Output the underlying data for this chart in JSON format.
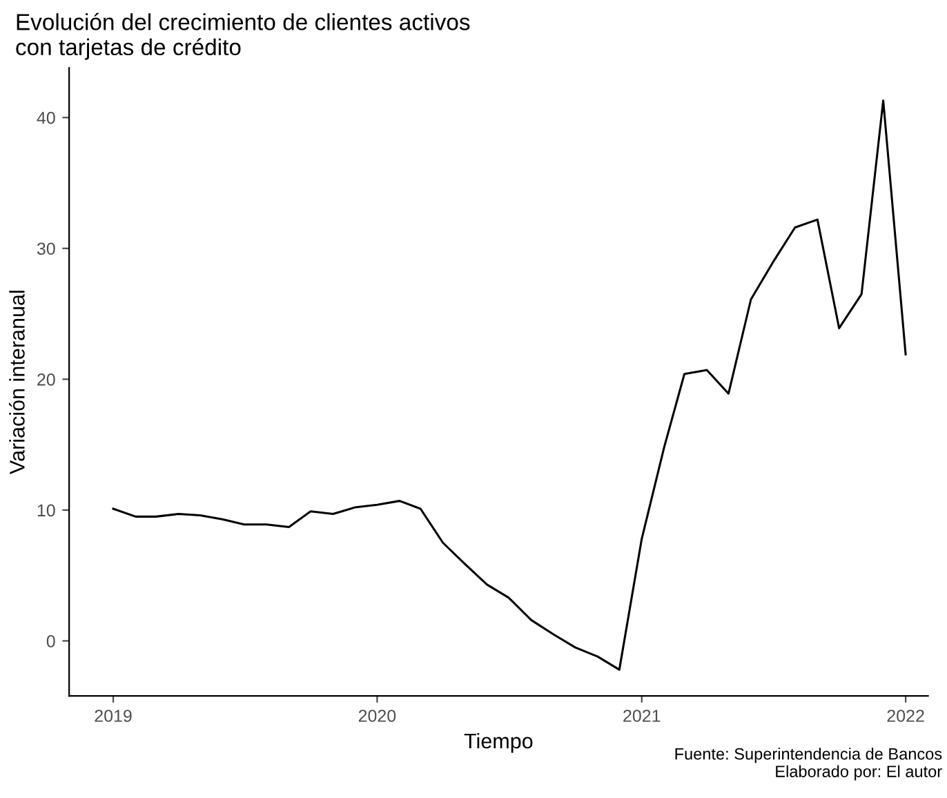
{
  "chart_data": {
    "type": "line",
    "title": "Evolución del crecimiento de clientes activos\ncon tarjetas de crédito",
    "xlabel": "Tiempo",
    "ylabel": "Variación interanual",
    "x": [
      "2019-01",
      "2019-02",
      "2019-03",
      "2019-04",
      "2019-05",
      "2019-06",
      "2019-07",
      "2019-08",
      "2019-09",
      "2019-10",
      "2019-11",
      "2019-12",
      "2020-01",
      "2020-02",
      "2020-03",
      "2020-04",
      "2020-05",
      "2020-06",
      "2020-07",
      "2020-08",
      "2020-09",
      "2020-10",
      "2020-11",
      "2020-12",
      "2021-01",
      "2021-02",
      "2021-03",
      "2021-04",
      "2021-05",
      "2021-06",
      "2021-07",
      "2021-08",
      "2021-09",
      "2021-10",
      "2021-11",
      "2021-12",
      "2022-01"
    ],
    "series": [
      {
        "color": "#000000",
        "values": [
          10.1,
          9.5,
          9.5,
          9.7,
          9.6,
          9.3,
          8.9,
          8.9,
          8.7,
          9.9,
          9.7,
          10.2,
          10.4,
          10.7,
          10.1,
          7.5,
          5.9,
          4.3,
          3.3,
          1.6,
          0.5,
          -0.5,
          -1.2,
          -2.2,
          7.8,
          14.8,
          20.4,
          20.7,
          18.9,
          26.1,
          28.9,
          31.6,
          32.2,
          23.9,
          26.5,
          41.3,
          21.9
        ]
      }
    ],
    "xlim": [
      "2018-11",
      "2022-02"
    ],
    "xticks": [
      {
        "value": "2019-01",
        "label": "2019"
      },
      {
        "value": "2020-01",
        "label": "2020"
      },
      {
        "value": "2021-01",
        "label": "2021"
      },
      {
        "value": "2022-01",
        "label": "2022"
      }
    ],
    "ylim": [
      -4.2,
      43.8
    ],
    "yticks": [
      0,
      10,
      20,
      30,
      40
    ],
    "grid": false,
    "marker": "none",
    "line_style": "solid",
    "annotations": [
      "Fuente: Superintendencia de Bancos",
      "Elaborado por: El autor"
    ]
  }
}
